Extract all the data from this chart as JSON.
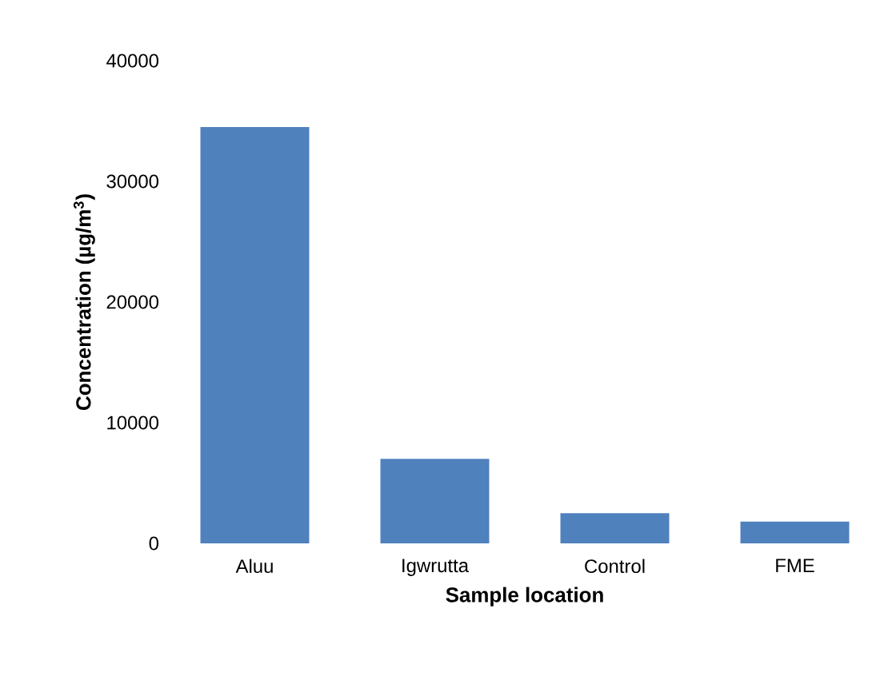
{
  "chart_data": {
    "type": "bar",
    "xlabel": "Sample location",
    "ylabel": "Concentration (µg/m$^{3}$)",
    "categories": [
      "Aluu",
      "Igwrutta",
      "Control",
      "FME"
    ],
    "values": [
      34500,
      7000,
      2500,
      1800
    ],
    "color": "#4f81bd",
    "ylim": [
      0,
      40000
    ],
    "yticks": [
      0,
      10000,
      20000,
      30000,
      40000
    ],
    "grid": false
  }
}
